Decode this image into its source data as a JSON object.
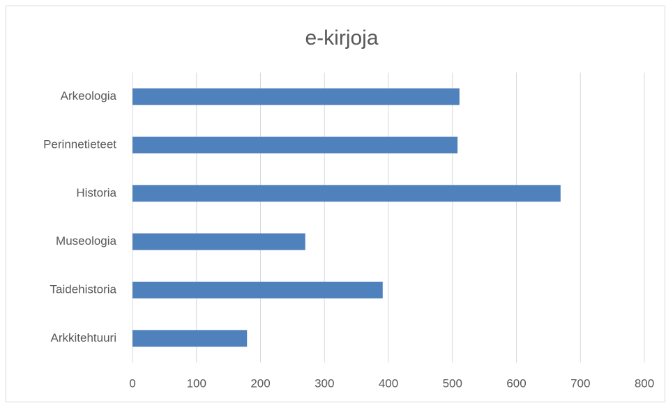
{
  "chart_data": {
    "type": "bar",
    "orientation": "horizontal",
    "title": "e-kirjoja",
    "categories": [
      "Arkeologia",
      "Perinnetieteet",
      "Historia",
      "Museologia",
      "Taidehistoria",
      "Arkkitehtuuri"
    ],
    "values": [
      511,
      508,
      669,
      270,
      391,
      179
    ],
    "color": "#4f81bd",
    "xlim": [
      0,
      800
    ],
    "xticks": [
      0,
      100,
      200,
      300,
      400,
      500,
      600,
      700,
      800
    ],
    "grid": true
  }
}
